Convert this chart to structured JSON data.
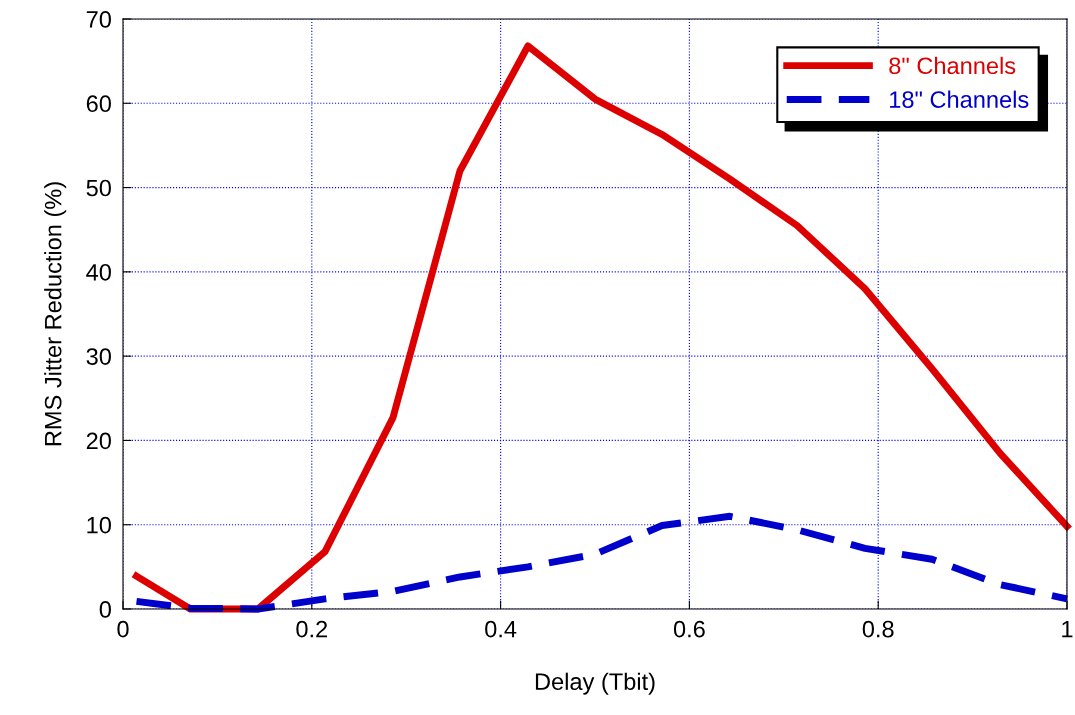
{
  "chart_data": {
    "type": "line",
    "xlabel": "Delay (Tbit)",
    "ylabel": "RMS Jitter Reduction (%)",
    "xlim": [
      0,
      1
    ],
    "ylim": [
      0,
      70
    ],
    "xticks": [
      0,
      0.2,
      0.4,
      0.6,
      0.8,
      1
    ],
    "yticks": [
      0,
      10,
      20,
      30,
      40,
      50,
      60,
      70
    ],
    "grid": true,
    "legend": "top right",
    "series": [
      {
        "name": "8\" Channels",
        "color": "#dd0000",
        "line_style": "solid",
        "x": [
          0.0143,
          0.0714,
          0.143,
          0.214,
          0.286,
          0.357,
          0.429,
          0.5,
          0.571,
          0.643,
          0.714,
          0.786,
          0.857,
          0.929,
          1.0
        ],
        "values": [
          3.9,
          0,
          0,
          6.8,
          22.7,
          52,
          66.8,
          60.5,
          56.3,
          51,
          45.5,
          38,
          28.5,
          18.5,
          9.8
        ]
      },
      {
        "name": "18\" Channels",
        "color": "#0000cc",
        "line_style": "dashed",
        "x": [
          0.0143,
          0.0714,
          0.143,
          0.214,
          0.286,
          0.357,
          0.429,
          0.5,
          0.571,
          0.643,
          0.714,
          0.786,
          0.857,
          0.929,
          1.0
        ],
        "values": [
          0.9,
          0.1,
          0,
          1.2,
          2.1,
          3.8,
          5,
          6.5,
          9.9,
          11,
          9.4,
          7.2,
          5.9,
          2.9,
          1.2
        ]
      }
    ]
  }
}
